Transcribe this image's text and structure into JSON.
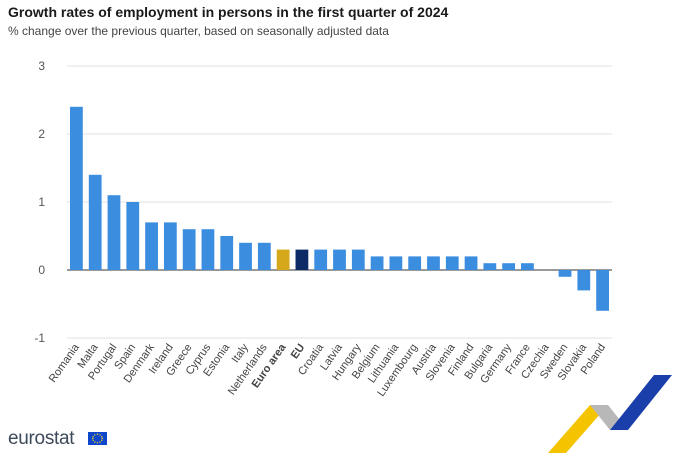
{
  "header": {
    "title": "Growth rates of employment in persons in the first quarter of 2024",
    "subtitle": "% change over the previous quarter, based on seasonally adjusted data"
  },
  "brand": {
    "name": "eurostat"
  },
  "colors": {
    "country": "#3b8de0",
    "euro_area": "#d4a81a",
    "eu": "#0d2a66",
    "grid": "#e2e2e2",
    "axis_text": "#555555"
  },
  "chart_data": {
    "type": "bar",
    "title": "Growth rates of employment in persons in the first quarter of 2024",
    "subtitle": "% change over the previous quarter, based on seasonally adjusted data",
    "ylim": [
      -1,
      3
    ],
    "yticks": [
      -1,
      0,
      1,
      2,
      3
    ],
    "grid": true,
    "categories": [
      "Romania",
      "Malta",
      "Portugal",
      "Spain",
      "Denmark",
      "Ireland",
      "Greece",
      "Cyprus",
      "Estonia",
      "Italy",
      "Netherlands",
      "Euro area",
      "EU",
      "Croatia",
      "Latvia",
      "Hungary",
      "Belgium",
      "Lithuania",
      "Luxembourg",
      "Austria",
      "Slovenia",
      "Finland",
      "Bulgaria",
      "Germany",
      "France",
      "Czechia",
      "Sweden",
      "Slovakia",
      "Poland"
    ],
    "values": [
      2.4,
      1.4,
      1.1,
      1.0,
      0.7,
      0.7,
      0.6,
      0.6,
      0.5,
      0.4,
      0.4,
      0.3,
      0.3,
      0.3,
      0.3,
      0.3,
      0.2,
      0.2,
      0.2,
      0.2,
      0.2,
      0.2,
      0.1,
      0.1,
      0.1,
      0.0,
      -0.1,
      -0.3,
      -0.6
    ],
    "bold_categories": [
      "Euro area",
      "EU"
    ]
  }
}
